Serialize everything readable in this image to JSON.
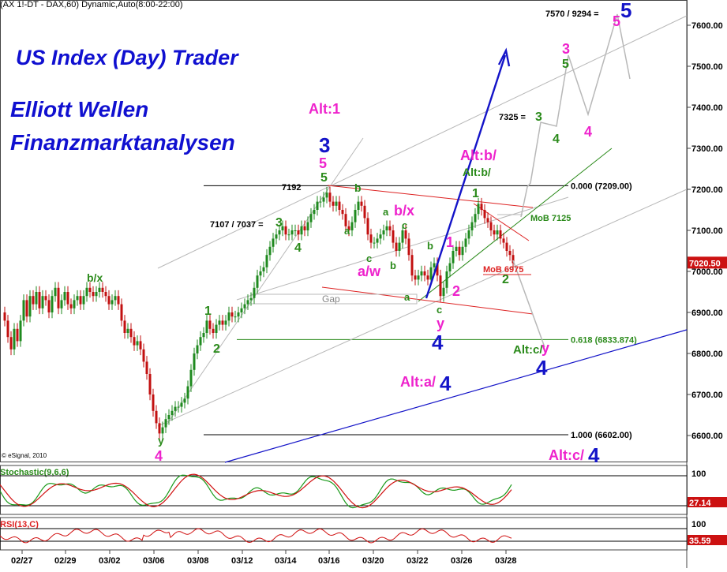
{
  "header": "(AX 1!-DT - DAX,60) Dynamic,Auto(8:00-22:00)",
  "overlay": {
    "line1": "US Index (Day) Trader",
    "line2": "Elliott Wellen",
    "line3": "Finanzmarktanalysen"
  },
  "watermark": "© eSignal, 2010",
  "colors": {
    "wave_green": "#2a8a1a",
    "wave_magenta": "#ee22cc",
    "wave_blue": "#1414c8",
    "channel_red": "#dd2222",
    "candle_up": "#1f8a1f",
    "candle_down": "#c21010",
    "price_label_bg": "#cc1111",
    "price_label_bg2": "#cc1111"
  },
  "chart_data": [
    {
      "type": "candlestick",
      "title": "",
      "ylim": [
        6520,
        7700
      ],
      "y_ticks": [
        6600,
        6700,
        6800,
        6900,
        7000,
        7100,
        7200,
        7300,
        7400,
        7500,
        7600
      ],
      "y_tick_labels": [
        "6600.00",
        "6700.00",
        "6800.00",
        "6900.00",
        "7000.00",
        "7100.00",
        "7200.00",
        "7300.00",
        "7400.00",
        "7500.00",
        "7600.00"
      ],
      "x_tick_labels": [
        "02/27",
        "02/29",
        "03/02",
        "03/06",
        "03/08",
        "03/12",
        "03/14",
        "03/16",
        "03/20",
        "03/22",
        "03/26",
        "03/28"
      ],
      "last_price": "7020.50",
      "price_path": [
        [
          0,
          6900
        ],
        [
          4,
          6880
        ],
        [
          8,
          6840
        ],
        [
          12,
          6810
        ],
        [
          16,
          6860
        ],
        [
          20,
          6830
        ],
        [
          24,
          6880
        ],
        [
          28,
          6930
        ],
        [
          32,
          6890
        ],
        [
          36,
          6940
        ],
        [
          40,
          6920
        ],
        [
          44,
          6950
        ],
        [
          48,
          6910
        ],
        [
          52,
          6940
        ],
        [
          56,
          6930
        ],
        [
          60,
          6900
        ],
        [
          64,
          6940
        ],
        [
          68,
          6960
        ],
        [
          72,
          6910
        ],
        [
          76,
          6930
        ],
        [
          80,
          6950
        ],
        [
          84,
          6920
        ],
        [
          88,
          6910
        ],
        [
          92,
          6930
        ],
        [
          96,
          6940
        ],
        [
          100,
          6920
        ],
        [
          104,
          6940
        ],
        [
          108,
          6960
        ],
        [
          112,
          6950
        ],
        [
          116,
          6940
        ],
        [
          120,
          6950
        ],
        [
          124,
          6960
        ],
        [
          128,
          6950
        ],
        [
          132,
          6940
        ],
        [
          136,
          6920
        ],
        [
          140,
          6930
        ],
        [
          144,
          6940
        ],
        [
          148,
          6920
        ],
        [
          152,
          6880
        ],
        [
          156,
          6850
        ],
        [
          160,
          6860
        ],
        [
          164,
          6840
        ],
        [
          168,
          6820
        ],
        [
          172,
          6830
        ],
        [
          176,
          6810
        ],
        [
          180,
          6780
        ],
        [
          184,
          6750
        ],
        [
          188,
          6700
        ],
        [
          192,
          6660
        ],
        [
          196,
          6630
        ],
        [
          200,
          6605
        ],
        [
          204,
          6620
        ],
        [
          208,
          6640
        ],
        [
          212,
          6650
        ],
        [
          216,
          6660
        ],
        [
          220,
          6670
        ],
        [
          224,
          6670
        ],
        [
          228,
          6680
        ],
        [
          232,
          6690
        ],
        [
          236,
          6720
        ],
        [
          240,
          6760
        ],
        [
          244,
          6800
        ],
        [
          248,
          6820
        ],
        [
          252,
          6840
        ],
        [
          256,
          6850
        ],
        [
          260,
          6880
        ],
        [
          264,
          6860
        ],
        [
          268,
          6850
        ],
        [
          272,
          6870
        ],
        [
          276,
          6880
        ],
        [
          280,
          6870
        ],
        [
          284,
          6880
        ],
        [
          288,
          6900
        ],
        [
          292,
          6890
        ],
        [
          296,
          6890
        ],
        [
          300,
          6900
        ],
        [
          304,
          6910
        ],
        [
          308,
          6920
        ],
        [
          312,
          6930
        ],
        [
          316,
          6935
        ],
        [
          320,
          6960
        ],
        [
          324,
          6990
        ],
        [
          328,
          7000
        ],
        [
          332,
          7010
        ],
        [
          336,
          7040
        ],
        [
          340,
          7060
        ],
        [
          344,
          7080
        ],
        [
          348,
          7090
        ],
        [
          352,
          7100
        ],
        [
          356,
          7110
        ],
        [
          360,
          7090
        ],
        [
          364,
          7090
        ],
        [
          368,
          7100
        ],
        [
          372,
          7100
        ],
        [
          376,
          7090
        ],
        [
          380,
          7110
        ],
        [
          384,
          7100
        ],
        [
          388,
          7120
        ],
        [
          392,
          7140
        ],
        [
          396,
          7150
        ],
        [
          400,
          7170
        ],
        [
          404,
          7170
        ],
        [
          408,
          7180
        ],
        [
          412,
          7192
        ],
        [
          416,
          7170
        ],
        [
          420,
          7160
        ],
        [
          424,
          7170
        ],
        [
          428,
          7150
        ],
        [
          432,
          7140
        ],
        [
          436,
          7110
        ],
        [
          440,
          7100
        ],
        [
          444,
          7120
        ],
        [
          448,
          7150
        ],
        [
          452,
          7170
        ],
        [
          456,
          7160
        ],
        [
          460,
          7130
        ],
        [
          464,
          7090
        ],
        [
          468,
          7070
        ],
        [
          472,
          7070
        ],
        [
          476,
          7080
        ],
        [
          480,
          7090
        ],
        [
          484,
          7100
        ],
        [
          488,
          7110
        ],
        [
          492,
          7100
        ],
        [
          496,
          7070
        ],
        [
          500,
          7050
        ],
        [
          504,
          7070
        ],
        [
          508,
          7100
        ],
        [
          512,
          7080
        ],
        [
          516,
          7040
        ],
        [
          520,
          6990
        ],
        [
          524,
          6980
        ],
        [
          528,
          6990
        ],
        [
          532,
          7000
        ],
        [
          536,
          6990
        ],
        [
          540,
          6980
        ],
        [
          544,
          7010
        ],
        [
          548,
          7020
        ],
        [
          552,
          6990
        ],
        [
          556,
          6940
        ],
        [
          560,
          6960
        ],
        [
          564,
          7000
        ],
        [
          568,
          7020
        ],
        [
          572,
          7050
        ],
        [
          576,
          7060
        ],
        [
          580,
          7040
        ],
        [
          584,
          7060
        ],
        [
          588,
          7080
        ],
        [
          592,
          7100
        ],
        [
          596,
          7120
        ],
        [
          600,
          7140
        ],
        [
          604,
          7165
        ],
        [
          608,
          7150
        ],
        [
          612,
          7130
        ],
        [
          616,
          7120
        ],
        [
          620,
          7100
        ],
        [
          624,
          7090
        ],
        [
          628,
          7100
        ],
        [
          632,
          7080
        ],
        [
          636,
          7070
        ],
        [
          640,
          7050
        ],
        [
          644,
          7040
        ],
        [
          648,
          7020
        ]
      ]
    },
    {
      "type": "line",
      "title": "Stochastic(9,6,6)",
      "ylim": [
        0,
        100
      ],
      "y_tick_labels": [
        "100"
      ],
      "last_value": "27.14"
    },
    {
      "type": "line",
      "title": "RSI(13,C)",
      "ylim": [
        0,
        100
      ],
      "y_tick_labels": [
        "100"
      ],
      "last_value": "35.59"
    }
  ],
  "annotations": {
    "fib0": "0.000 (7209.00)",
    "fib618": "0.618 (6833.874)",
    "fib1": "1.000 (6602.00)",
    "mob7125": "MoB 7125",
    "mob6975": "MoB 6975",
    "gap": "Gap",
    "lvl7192": "7192",
    "lvl7107": "7107 / 7037 =",
    "lvl7325": "7325 =",
    "lvl7570": "7570 / 9294 =",
    "alt1": "Alt:1",
    "altb": "Alt:b/",
    "altb2": "Alt:b/",
    "alta": "Alt:a/",
    "altc4": "Alt:c/",
    "altcy": "Alt:c/",
    "w_aw": "a/w",
    "w_bx": "b/x",
    "w_bx2": "b/x",
    "n1": "1",
    "n2": "2",
    "n3": "3",
    "n4": "4",
    "n5": "5",
    "a": "a",
    "b": "b",
    "c": "c",
    "y": "y"
  }
}
